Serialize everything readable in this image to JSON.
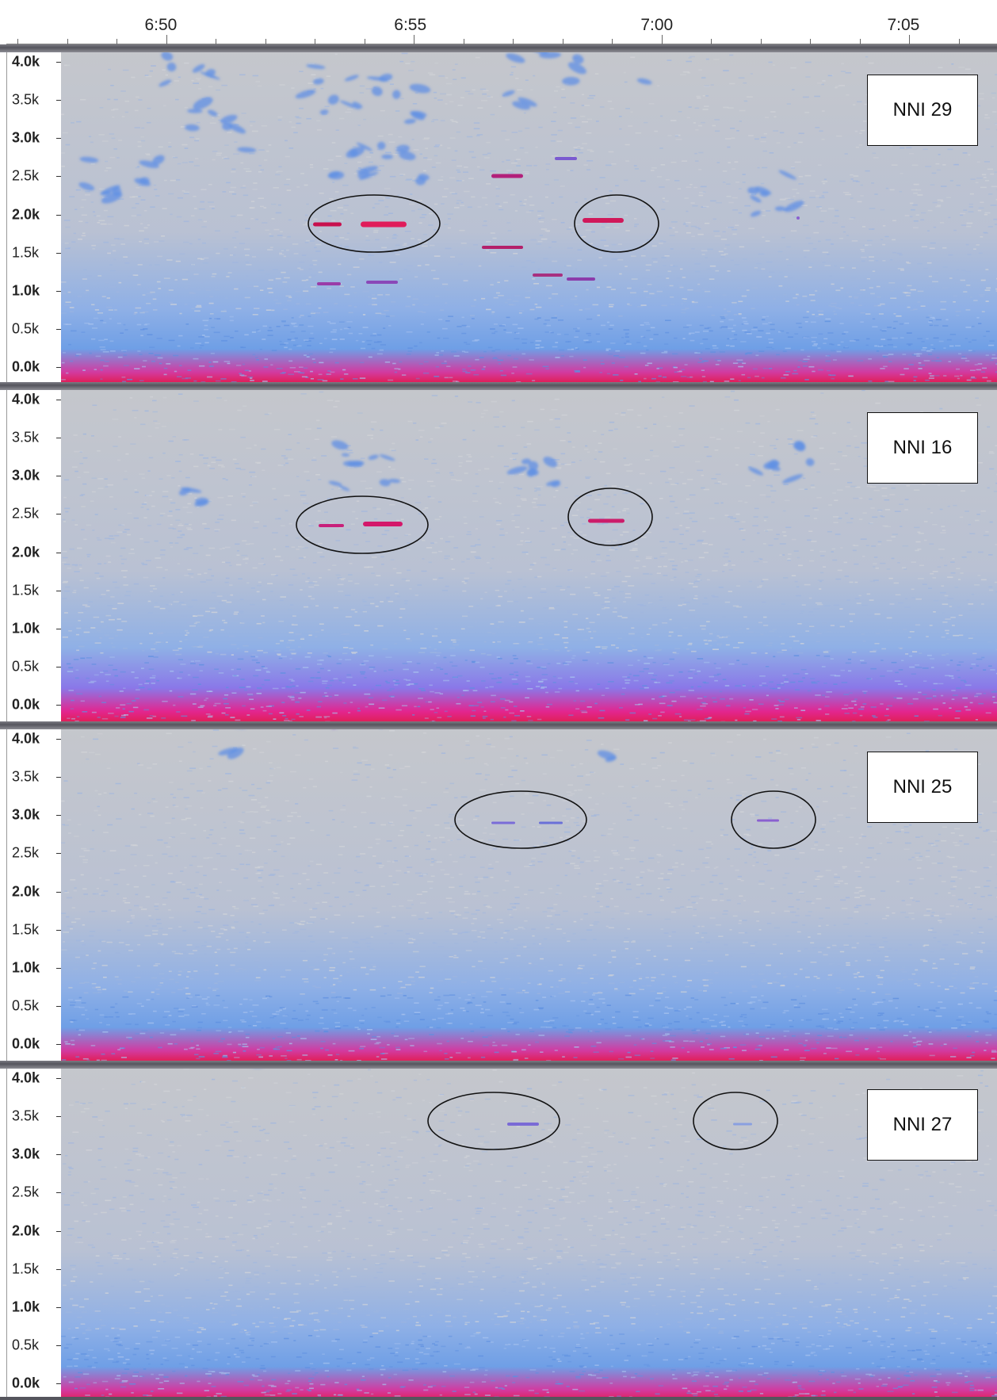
{
  "time_ruler": {
    "labels": [
      {
        "text": "6:50",
        "value_min": 6.833
      },
      {
        "text": "6:55",
        "value_min": 6.917
      },
      {
        "text": "7:00",
        "value_min": 7.0
      },
      {
        "text": "7:05",
        "value_min": 7.083
      }
    ]
  },
  "frequency_axis": {
    "labels": [
      {
        "text": "4.0k",
        "value_hz": 4000,
        "bold": true
      },
      {
        "text": "3.5k",
        "value_hz": 3500,
        "bold": false
      },
      {
        "text": "3.0k",
        "value_hz": 3000,
        "bold": true
      },
      {
        "text": "2.5k",
        "value_hz": 2500,
        "bold": false
      },
      {
        "text": "2.0k",
        "value_hz": 2000,
        "bold": true
      },
      {
        "text": "1.5k",
        "value_hz": 1500,
        "bold": false
      },
      {
        "text": "1.0k",
        "value_hz": 1000,
        "bold": true
      },
      {
        "text": "0.5k",
        "value_hz": 500,
        "bold": false
      },
      {
        "text": "0.0k",
        "value_hz": 0,
        "bold": true
      }
    ]
  },
  "tracks": [
    {
      "label": "NNI 29",
      "noise_floor": "strong-low",
      "call_intensity": "high"
    },
    {
      "label": "NNI 16",
      "noise_floor": "very-strong-low",
      "call_intensity": "medium"
    },
    {
      "label": "NNI 25",
      "noise_floor": "strong-low",
      "call_intensity": "faint"
    },
    {
      "label": "NNI 27",
      "noise_floor": "medium-low",
      "call_intensity": "faint"
    }
  ],
  "colors": {
    "background": "#c3c5c9",
    "noise_blue": "#6f9fe6",
    "call_magenta": "#e0208a",
    "call_red": "#d01040",
    "separator": "#5a5a62"
  }
}
